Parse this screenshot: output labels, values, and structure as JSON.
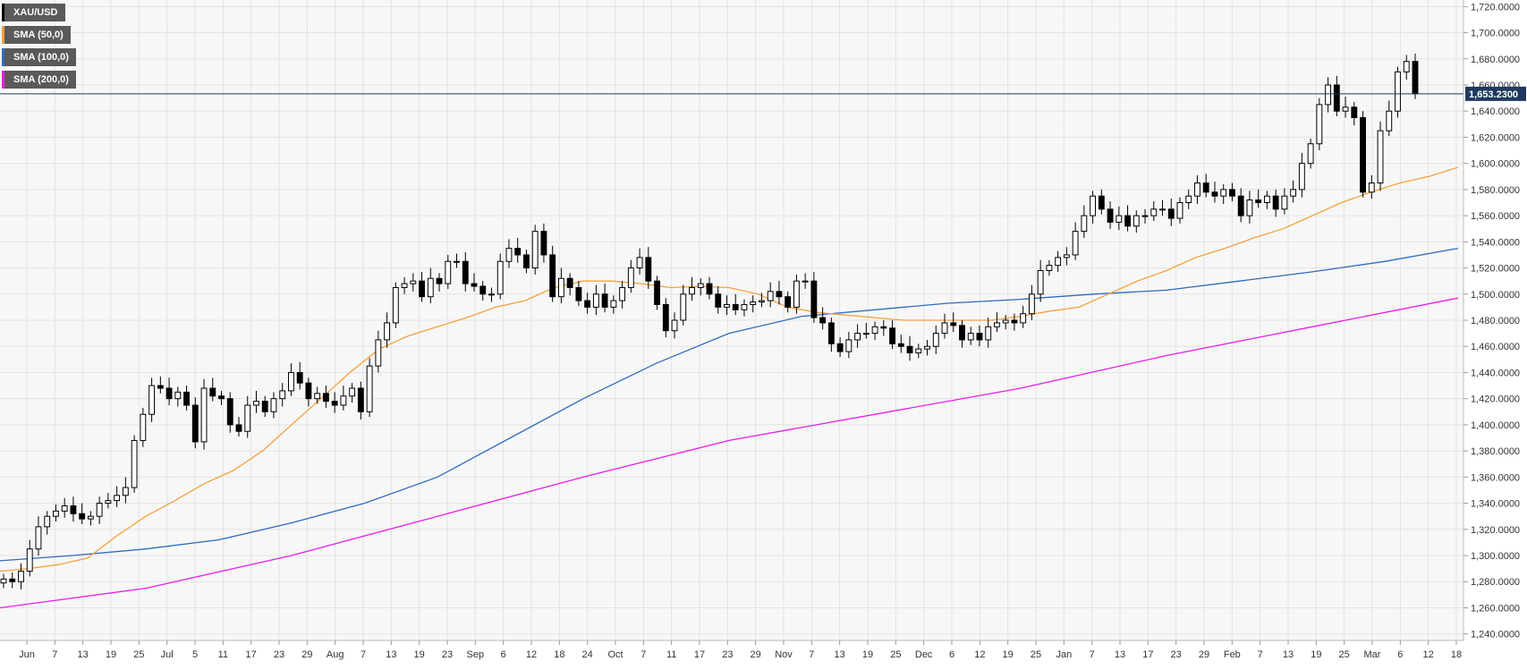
{
  "chart_data": {
    "type": "candlestick",
    "symbol": "XAU/USD",
    "legend": [
      {
        "label": "XAU/USD",
        "color": "#000000"
      },
      {
        "label": "SMA (50,0)",
        "color": "#f5a13c"
      },
      {
        "label": "SMA (100,0)",
        "color": "#2e6bbf"
      },
      {
        "label": "SMA (200,0)",
        "color": "#e91ee9"
      }
    ],
    "last_price_label": "1,653.2300",
    "last_price": 1653.23,
    "ylim": [
      1235,
      1725
    ],
    "y_ticks": [
      "1,240.0000",
      "1,260.0000",
      "1,280.0000",
      "1,300.0000",
      "1,320.0000",
      "1,340.0000",
      "1,360.0000",
      "1,380.0000",
      "1,400.0000",
      "1,420.0000",
      "1,440.0000",
      "1,460.0000",
      "1,480.0000",
      "1,500.0000",
      "1,520.0000",
      "1,540.0000",
      "1,560.0000",
      "1,580.0000",
      "1,600.0000",
      "1,620.0000",
      "1,640.0000",
      "1,660.0000",
      "1,680.0000",
      "1,700.0000",
      "1,720.0000"
    ],
    "x_ticks": [
      "Jun",
      "7",
      "13",
      "19",
      "25",
      "Jul",
      "5",
      "11",
      "17",
      "23",
      "29",
      "Aug",
      "7",
      "13",
      "19",
      "23",
      "Sep",
      "6",
      "12",
      "18",
      "24",
      "Oct",
      "7",
      "11",
      "17",
      "23",
      "29",
      "Nov",
      "7",
      "13",
      "19",
      "25",
      "Dec",
      "6",
      "12",
      "19",
      "25",
      "Jan",
      "7",
      "13",
      "17",
      "23",
      "29",
      "Feb",
      "7",
      "13",
      "19",
      "25",
      "Mar",
      "6",
      "12",
      "18"
    ],
    "grid": true,
    "close_path": [
      1282,
      1280,
      1288,
      1305,
      1322,
      1330,
      1334,
      1338,
      1332,
      1328,
      1330,
      1340,
      1342,
      1346,
      1352,
      1388,
      1408,
      1430,
      1428,
      1420,
      1425,
      1415,
      1387,
      1428,
      1422,
      1420,
      1400,
      1395,
      1415,
      1418,
      1410,
      1420,
      1426,
      1440,
      1432,
      1420,
      1424,
      1418,
      1415,
      1422,
      1428,
      1410,
      1445,
      1465,
      1478,
      1505,
      1508,
      1510,
      1498,
      1512,
      1508,
      1525,
      1525,
      1508,
      1506,
      1500,
      1500,
      1525,
      1535,
      1530,
      1520,
      1548,
      1530,
      1498,
      1512,
      1505,
      1495,
      1490,
      1500,
      1490,
      1495,
      1505,
      1520,
      1528,
      1510,
      1492,
      1472,
      1480,
      1500,
      1505,
      1508,
      1500,
      1490,
      1492,
      1488,
      1492,
      1494,
      1495,
      1502,
      1498,
      1490,
      1510,
      1510,
      1482,
      1478,
      1462,
      1456,
      1465,
      1470,
      1470,
      1475,
      1474,
      1462,
      1460,
      1455,
      1458,
      1460,
      1470,
      1478,
      1476,
      1465,
      1470,
      1465,
      1475,
      1478,
      1480,
      1478,
      1485,
      1500,
      1518,
      1522,
      1528,
      1530,
      1548,
      1560,
      1575,
      1565,
      1555,
      1560,
      1552,
      1560,
      1560,
      1565,
      1565,
      1558,
      1570,
      1575,
      1585,
      1578,
      1575,
      1580,
      1575,
      1560,
      1572,
      1570,
      1575,
      1565,
      1575,
      1580,
      1600,
      1615,
      1645,
      1660,
      1640,
      1643,
      1635,
      1578,
      1585,
      1625,
      1640,
      1670,
      1678,
      1653.23
    ],
    "sma50_path": [
      [
        0,
        1288
      ],
      [
        0.02,
        1290
      ],
      [
        0.04,
        1293
      ],
      [
        0.06,
        1298
      ],
      [
        0.08,
        1315
      ],
      [
        0.1,
        1330
      ],
      [
        0.12,
        1342
      ],
      [
        0.14,
        1355
      ],
      [
        0.16,
        1365
      ],
      [
        0.18,
        1380
      ],
      [
        0.2,
        1400
      ],
      [
        0.22,
        1420
      ],
      [
        0.24,
        1440
      ],
      [
        0.26,
        1458
      ],
      [
        0.28,
        1468
      ],
      [
        0.3,
        1475
      ],
      [
        0.32,
        1482
      ],
      [
        0.34,
        1490
      ],
      [
        0.36,
        1495
      ],
      [
        0.38,
        1505
      ],
      [
        0.4,
        1510
      ],
      [
        0.42,
        1510
      ],
      [
        0.44,
        1508
      ],
      [
        0.46,
        1505
      ],
      [
        0.48,
        1506
      ],
      [
        0.5,
        1505
      ],
      [
        0.52,
        1500
      ],
      [
        0.54,
        1490
      ],
      [
        0.56,
        1486
      ],
      [
        0.58,
        1484
      ],
      [
        0.6,
        1482
      ],
      [
        0.62,
        1480
      ],
      [
        0.64,
        1480
      ],
      [
        0.66,
        1480
      ],
      [
        0.68,
        1480
      ],
      [
        0.7,
        1483
      ],
      [
        0.72,
        1487
      ],
      [
        0.74,
        1490
      ],
      [
        0.76,
        1500
      ],
      [
        0.78,
        1510
      ],
      [
        0.8,
        1518
      ],
      [
        0.82,
        1528
      ],
      [
        0.84,
        1535
      ],
      [
        0.86,
        1543
      ],
      [
        0.88,
        1550
      ],
      [
        0.9,
        1560
      ],
      [
        0.92,
        1570
      ],
      [
        0.94,
        1578
      ],
      [
        0.96,
        1585
      ],
      [
        0.98,
        1590
      ],
      [
        1,
        1597
      ]
    ],
    "sma100_path": [
      [
        0,
        1296
      ],
      [
        0.05,
        1300
      ],
      [
        0.1,
        1305
      ],
      [
        0.15,
        1312
      ],
      [
        0.2,
        1325
      ],
      [
        0.25,
        1340
      ],
      [
        0.3,
        1360
      ],
      [
        0.35,
        1390
      ],
      [
        0.4,
        1420
      ],
      [
        0.45,
        1447
      ],
      [
        0.5,
        1470
      ],
      [
        0.55,
        1483
      ],
      [
        0.6,
        1488
      ],
      [
        0.65,
        1493
      ],
      [
        0.7,
        1496
      ],
      [
        0.75,
        1500
      ],
      [
        0.8,
        1503
      ],
      [
        0.85,
        1510
      ],
      [
        0.9,
        1517
      ],
      [
        0.95,
        1525
      ],
      [
        1,
        1535
      ]
    ],
    "sma200_path": [
      [
        0,
        1260
      ],
      [
        0.1,
        1275
      ],
      [
        0.2,
        1300
      ],
      [
        0.3,
        1330
      ],
      [
        0.4,
        1360
      ],
      [
        0.5,
        1388
      ],
      [
        0.6,
        1408
      ],
      [
        0.7,
        1428
      ],
      [
        0.8,
        1453
      ],
      [
        0.9,
        1475
      ],
      [
        1,
        1497
      ]
    ]
  }
}
